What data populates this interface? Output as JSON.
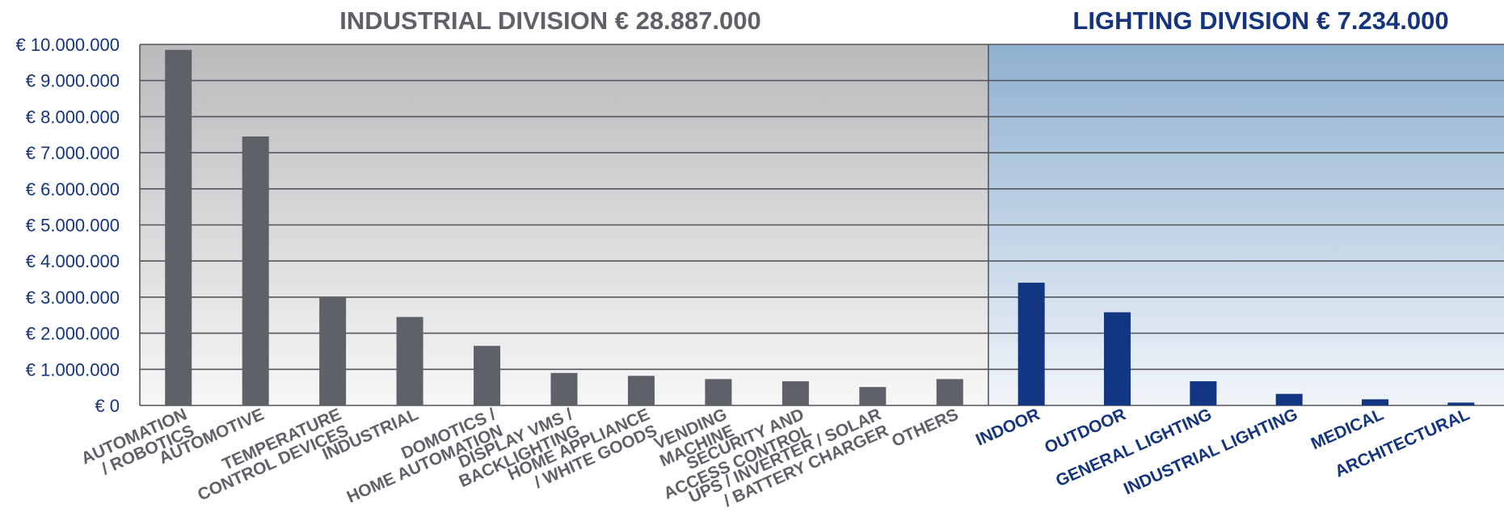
{
  "colors": {
    "industrial_bar": "#5f6168",
    "lighting_bar": "#123682",
    "industrial_text": "#5f6168",
    "lighting_text": "#14347f",
    "axis_text": "#14347f",
    "grid": "#55575c"
  },
  "chart_data": [
    {
      "type": "bar",
      "title": "INDUSTRIAL DIVISION € 28.887.000",
      "xlabel": "",
      "ylabel": "",
      "ylim": [
        0,
        10000000
      ],
      "yticks": [
        "€ 0",
        "€ 1.000.000",
        "€ 2.000.000",
        "€ 3.000.000",
        "€ 4.000.000",
        "€ 5.000.000",
        "€ 6.000.000",
        "€ 7.000.000",
        "€ 8.000.000",
        "€ 9.000.000",
        "€ 10.000.000"
      ],
      "grid": true,
      "categories": [
        "AUTOMATION / ROBOTICS",
        "AUTOMOTIVE",
        "TEMPERATURE CONTROL DEVICES",
        "INDUSTRIAL",
        "DOMOTICS / HOME AUTOMATION",
        "DISPLAY VMS / BACKLIGHTING",
        "HOME APPLIANCE / WHITE GOODS",
        "VENDING MACHINE",
        "SECURITY AND ACCESS CONTROL",
        "UPS / INVERTER / SOLAR / BATTERY CHARGER",
        "OTHERS"
      ],
      "values": [
        9850000,
        7450000,
        3000000,
        2450000,
        1650000,
        900000,
        820000,
        730000,
        670000,
        510000,
        730000
      ]
    },
    {
      "type": "bar",
      "title": "LIGHTING DIVISION € 7.234.000",
      "xlabel": "",
      "ylabel": "",
      "ylim": [
        0,
        10000000
      ],
      "grid": true,
      "categories": [
        "INDOOR",
        "OUTDOOR",
        "GENERAL LIGHTING",
        "INDUSTRIAL LIGHTING",
        "MEDICAL",
        "ARCHITECTURAL"
      ],
      "values": [
        3400000,
        2580000,
        670000,
        320000,
        170000,
        80000
      ]
    }
  ]
}
